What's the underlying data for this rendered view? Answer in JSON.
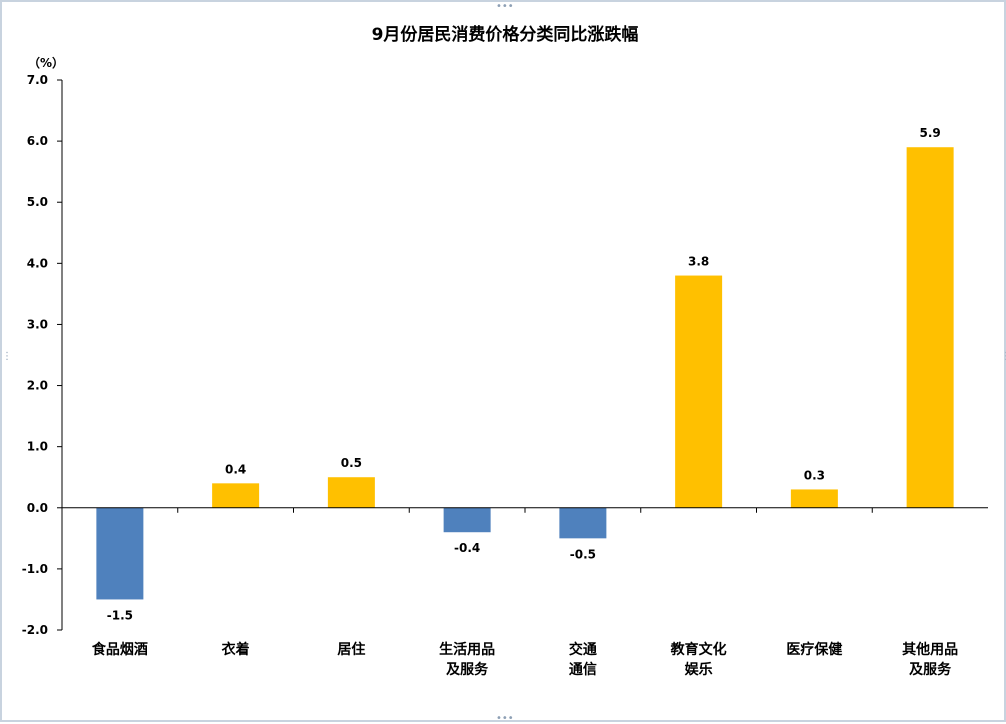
{
  "chart_data": {
    "type": "bar",
    "title": "9月份居民消费价格分类同比涨跌幅",
    "unit": "（%）",
    "categories": [
      [
        "食品烟酒"
      ],
      [
        "衣着"
      ],
      [
        "居住"
      ],
      [
        "生活用品",
        "及服务"
      ],
      [
        "交通",
        "通信"
      ],
      [
        "教育文化",
        "娱乐"
      ],
      [
        "医疗保健"
      ],
      [
        "其他用品",
        "及服务"
      ]
    ],
    "values": [
      -1.5,
      0.4,
      0.5,
      -0.4,
      -0.5,
      3.8,
      0.3,
      5.9
    ],
    "value_labels": [
      "-1.5",
      "0.4",
      "0.5",
      "-0.4",
      "-0.5",
      "3.8",
      "0.3",
      "5.9"
    ],
    "yticks": [
      "7.0",
      "6.0",
      "5.0",
      "4.0",
      "3.0",
      "2.0",
      "1.0",
      "0.0",
      "-1.0",
      "-2.0"
    ],
    "ylim": [
      -2.0,
      7.0
    ],
    "grid": false,
    "legend": "none",
    "colors": {
      "positive": "#FFC000",
      "negative": "#4F81BD",
      "axis": "#000000"
    }
  }
}
